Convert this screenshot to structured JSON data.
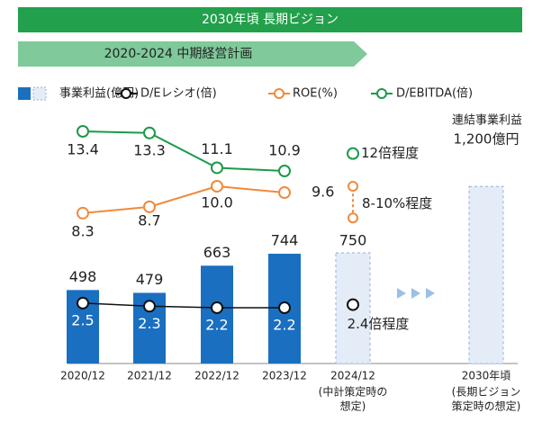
{
  "chart_data": {
    "type": "bar",
    "title": "2030年頃 長期ビジョン",
    "subtitle": "2020-2024 中期経営計画",
    "annotation": "連結事業利益",
    "categories": [
      "2020/12",
      "2021/12",
      "2022/12",
      "2023/12",
      "2024/12",
      "2030年頃"
    ],
    "category_notes": [
      null,
      null,
      null,
      null,
      [
        "(中計策定時の",
        "想定)"
      ],
      [
        "(長期ビジョン",
        "策定時の想定)"
      ]
    ],
    "series": [
      {
        "name": "事業利益(億円)",
        "type": "bar",
        "color": "#1a6fc0",
        "target_color": "#e4ecf8",
        "values": [
          498,
          479,
          663,
          744,
          null,
          null
        ],
        "targets": [
          null,
          null,
          null,
          null,
          750,
          1200
        ],
        "target_labels": [
          null,
          null,
          null,
          null,
          "750",
          "1,200億円"
        ]
      },
      {
        "name": "D/Eレシオ(倍)",
        "type": "line",
        "color": "#111111",
        "values": [
          2.5,
          2.3,
          2.2,
          2.2,
          null,
          null
        ],
        "targets": [
          null,
          null,
          null,
          null,
          2.4,
          null
        ],
        "target_labels": [
          null,
          null,
          null,
          null,
          "2.4倍程度",
          null
        ]
      },
      {
        "name": "ROE(%)",
        "type": "line",
        "color": "#f08a3c",
        "values": [
          8.3,
          8.7,
          10.0,
          9.6,
          null,
          null
        ],
        "value_labels": [
          "8.3",
          "8.7",
          "10.0",
          "9.6",
          null,
          null
        ],
        "targets": [
          null,
          null,
          null,
          null,
          [
            8,
            10
          ],
          null
        ],
        "target_labels": [
          null,
          null,
          null,
          null,
          "8-10%程度",
          null
        ]
      },
      {
        "name": "D/EBITDA(倍)",
        "type": "line",
        "color": "#1a9a4a",
        "values": [
          13.4,
          13.3,
          11.1,
          10.9,
          null,
          null
        ],
        "targets": [
          null,
          null,
          null,
          null,
          12,
          null
        ],
        "target_labels": [
          null,
          null,
          null,
          null,
          "12倍程度",
          null
        ]
      }
    ]
  }
}
